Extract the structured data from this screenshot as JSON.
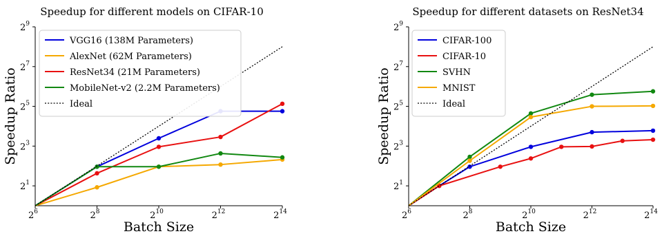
{
  "chart_data": [
    {
      "type": "line",
      "title": "Speedup for different models on CIFAR-10",
      "xlabel": "Batch Size",
      "ylabel": "Speedup Ratio",
      "x_scale": "log2",
      "y_scale": "log2",
      "xlim": [
        64,
        16384
      ],
      "ylim": [
        1,
        512
      ],
      "x_ticks": [
        {
          "base": "2",
          "exp": "6"
        },
        {
          "base": "2",
          "exp": "8"
        },
        {
          "base": "2",
          "exp": "10"
        },
        {
          "base": "2",
          "exp": "12"
        },
        {
          "base": "2",
          "exp": "14"
        }
      ],
      "y_ticks": [
        {
          "base": "2",
          "exp": "1"
        },
        {
          "base": "2",
          "exp": "3"
        },
        {
          "base": "2",
          "exp": "5"
        },
        {
          "base": "2",
          "exp": "7"
        },
        {
          "base": "2",
          "exp": "9"
        }
      ],
      "grid": false,
      "legend_position": "top-left",
      "series": [
        {
          "name": "VGG16 (138M Parameters)",
          "color": "#0000dd",
          "x": [
            64,
            256,
            1024,
            4096,
            16384
          ],
          "y": [
            1,
            3.9,
            10.5,
            27,
            27
          ]
        },
        {
          "name": "AlexNet (62M Parameters)",
          "color": "#f5a800",
          "x": [
            64,
            256,
            1024,
            4096,
            16384
          ],
          "y": [
            1,
            1.9,
            3.9,
            4.2,
            5.0
          ]
        },
        {
          "name": "ResNet34 (21M Parameters)",
          "color": "#e81010",
          "x": [
            64,
            256,
            1024,
            4096,
            16384
          ],
          "y": [
            1,
            3.1,
            7.8,
            11,
            35
          ]
        },
        {
          "name": "MobileNet-v2 (2.2M Parameters)",
          "color": "#118811",
          "x": [
            64,
            256,
            1024,
            4096,
            16384
          ],
          "y": [
            1,
            3.9,
            3.9,
            6.2,
            5.4
          ]
        },
        {
          "name": "Ideal",
          "color": "#000000",
          "dashed": true,
          "markers": false,
          "x": [
            64,
            16384
          ],
          "y": [
            1,
            256
          ]
        }
      ]
    },
    {
      "type": "line",
      "title": "Speedup for different datasets on ResNet34",
      "xlabel": "Batch Size",
      "ylabel": "Speedup Ratio",
      "x_scale": "log2",
      "y_scale": "log2",
      "xlim": [
        64,
        16384
      ],
      "ylim": [
        1,
        512
      ],
      "x_ticks": [
        {
          "base": "2",
          "exp": "6"
        },
        {
          "base": "2",
          "exp": "8"
        },
        {
          "base": "2",
          "exp": "10"
        },
        {
          "base": "2",
          "exp": "12"
        },
        {
          "base": "2",
          "exp": "14"
        }
      ],
      "y_ticks": [
        {
          "base": "2",
          "exp": "1"
        },
        {
          "base": "2",
          "exp": "3"
        },
        {
          "base": "2",
          "exp": "5"
        },
        {
          "base": "2",
          "exp": "7"
        },
        {
          "base": "2",
          "exp": "9"
        }
      ],
      "grid": false,
      "legend_position": "top-left",
      "series": [
        {
          "name": "CIFAR-100",
          "color": "#0000dd",
          "x": [
            64,
            128,
            256,
            1024,
            4096,
            16384
          ],
          "y": [
            1,
            2,
            3.9,
            7.8,
            13,
            13.7
          ],
          "marker_x": [
            128,
            256,
            1024,
            4096,
            16384
          ]
        },
        {
          "name": "CIFAR-10",
          "color": "#e81010",
          "x": [
            64,
            128,
            512,
            1024,
            2048,
            4096,
            8192,
            16384
          ],
          "y": [
            1,
            2,
            3.9,
            5.2,
            7.8,
            7.9,
            9.6,
            10
          ],
          "marker_x": [
            128,
            512,
            1024,
            2048,
            4096,
            8192,
            16384
          ]
        },
        {
          "name": "SVHN",
          "color": "#118811",
          "x": [
            64,
            256,
            1024,
            4096,
            16384
          ],
          "y": [
            1,
            5.5,
            25,
            48,
            54
          ],
          "marker_x": [
            256,
            1024,
            4096,
            16384
          ]
        },
        {
          "name": "MNIST",
          "color": "#f5a800",
          "x": [
            64,
            256,
            1024,
            4096,
            16384
          ],
          "y": [
            1,
            4.8,
            22,
            32,
            32.5
          ],
          "marker_x": [
            256,
            1024,
            4096,
            16384
          ]
        },
        {
          "name": "Ideal",
          "color": "#000000",
          "dashed": true,
          "markers": false,
          "x": [
            64,
            16384
          ],
          "y": [
            1,
            256
          ]
        }
      ]
    }
  ]
}
